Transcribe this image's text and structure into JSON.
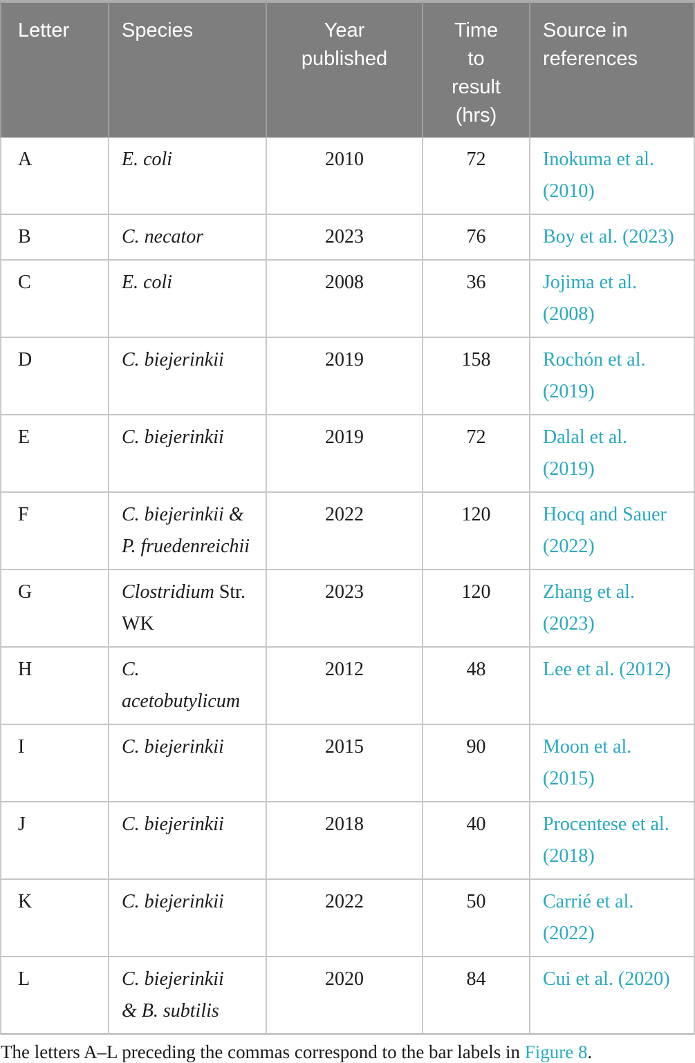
{
  "table": {
    "headers": [
      "Letter",
      "Species",
      "Year\npublished",
      "Time\nto\nresult\n(hrs)",
      "Source in\nreferences"
    ],
    "rows": [
      {
        "letter": "A",
        "species": [
          [
            {
              "text": "E. coli",
              "italic": true
            }
          ]
        ],
        "year": "2010",
        "time": "72",
        "source": [
          "Inokuma et al.",
          "(2010)"
        ]
      },
      {
        "letter": "B",
        "species": [
          [
            {
              "text": "C. necator",
              "italic": true
            }
          ]
        ],
        "year": "2023",
        "time": "76",
        "source": [
          "Boy et al. (2023)"
        ]
      },
      {
        "letter": "C",
        "species": [
          [
            {
              "text": "E. coli",
              "italic": true
            }
          ]
        ],
        "year": "2008",
        "time": "36",
        "source": [
          "Jojima et al.",
          "(2008)"
        ]
      },
      {
        "letter": "D",
        "species": [
          [
            {
              "text": "C. biejerinkii",
              "italic": true
            }
          ]
        ],
        "year": "2019",
        "time": "158",
        "source": [
          "Rochón et al.",
          "(2019)"
        ]
      },
      {
        "letter": "E",
        "species": [
          [
            {
              "text": "C. biejerinkii",
              "italic": true
            }
          ]
        ],
        "year": "2019",
        "time": "72",
        "source": [
          "Dalal et al.",
          "(2019)"
        ]
      },
      {
        "letter": "F",
        "species": [
          [
            {
              "text": "C. biejerinkii &",
              "italic": true
            }
          ],
          [
            {
              "text": "P. fruedenreichii",
              "italic": true
            }
          ]
        ],
        "year": "2022",
        "time": "120",
        "source": [
          "Hocq and Sauer",
          "(2022)"
        ]
      },
      {
        "letter": "G",
        "species": [
          [
            {
              "text": "Clostridium",
              "italic": true
            },
            {
              "text": " Str.",
              "italic": false
            }
          ],
          [
            {
              "text": "WK",
              "italic": false
            }
          ]
        ],
        "year": "2023",
        "time": "120",
        "source": [
          "Zhang et al.",
          "(2023)"
        ]
      },
      {
        "letter": "H",
        "species": [
          [
            {
              "text": "C.",
              "italic": true
            }
          ],
          [
            {
              "text": "acetobutylicum",
              "italic": true
            }
          ]
        ],
        "year": "2012",
        "time": "48",
        "source": [
          "Lee et al. (2012)"
        ]
      },
      {
        "letter": "I",
        "species": [
          [
            {
              "text": "C. biejerinkii",
              "italic": true
            }
          ]
        ],
        "year": "2015",
        "time": "90",
        "source": [
          "Moon et al.",
          "(2015)"
        ]
      },
      {
        "letter": "J",
        "species": [
          [
            {
              "text": "C. biejerinkii",
              "italic": true
            }
          ]
        ],
        "year": "2018",
        "time": "40",
        "source": [
          "Procentese et al.",
          "(2018)"
        ]
      },
      {
        "letter": "K",
        "species": [
          [
            {
              "text": "C. biejerinkii",
              "italic": true
            }
          ]
        ],
        "year": "2022",
        "time": "50",
        "source": [
          "Carrié et al.",
          "(2022)"
        ]
      },
      {
        "letter": "L",
        "species": [
          [
            {
              "text": "C. biejerinkii",
              "italic": true
            }
          ],
          [
            {
              "text": "& B. subtilis",
              "italic": true
            }
          ]
        ],
        "year": "2020",
        "time": "84",
        "source": [
          "Cui et al. (2020)"
        ]
      }
    ]
  },
  "footnote": {
    "prefix": "The letters A–L preceding the commas correspond to the bar labels in ",
    "link": "Figure 8",
    "suffix": "."
  },
  "colors": {
    "header_bg": "#7e7e7e",
    "header_text": "#ffffff",
    "header_separator": "#9f9f9f",
    "body_border": "#c9c9c9",
    "link_teal": "#29a9bf",
    "body_text": "#1b1b1b"
  }
}
